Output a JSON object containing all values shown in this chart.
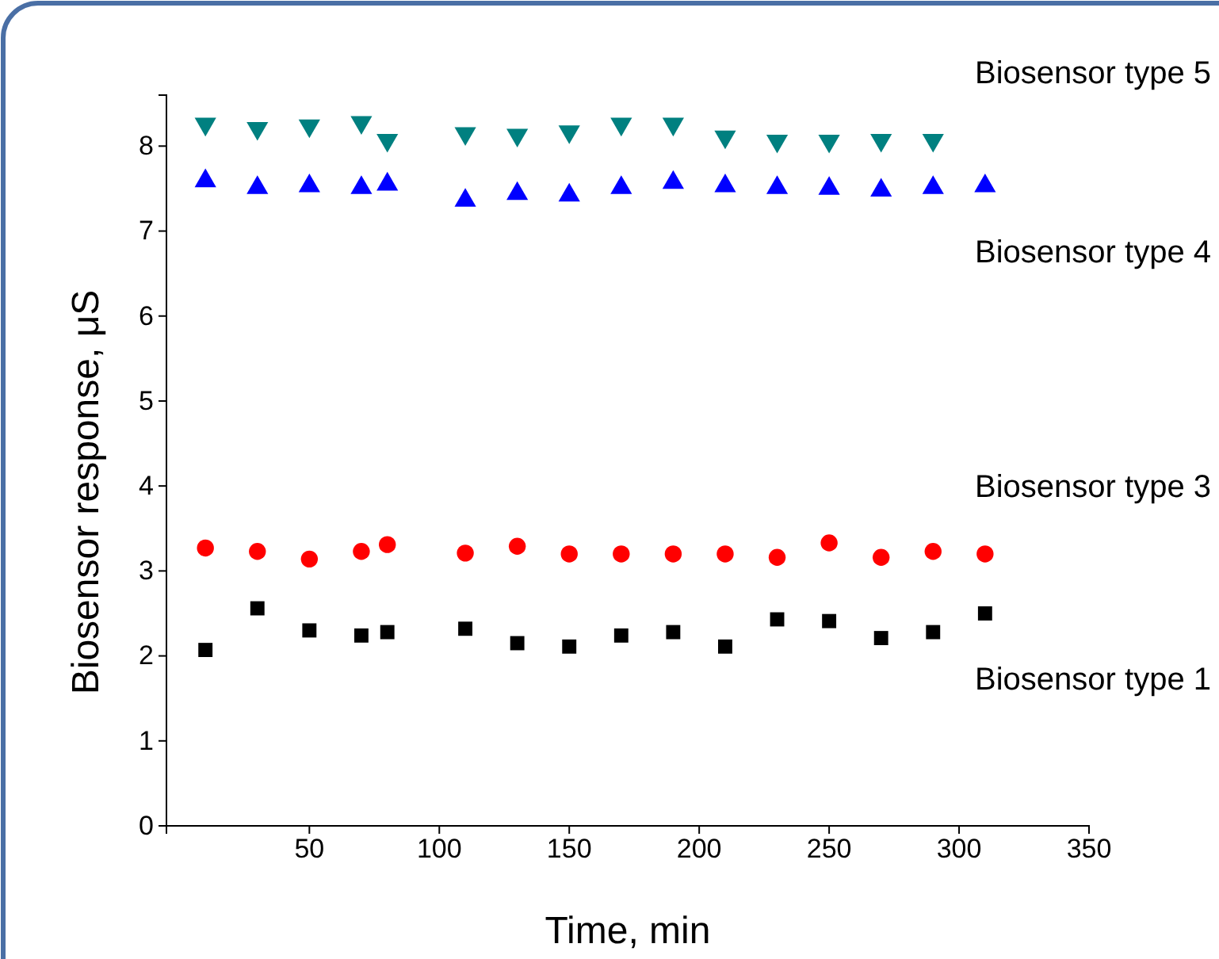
{
  "chart_data": {
    "type": "scatter",
    "xlabel": "Time, min",
    "ylabel": "Biosensor response, μS",
    "xlim": [
      -5,
      350
    ],
    "xticks": [
      50,
      100,
      150,
      200,
      250,
      300,
      350
    ],
    "ylim": [
      0,
      8.6
    ],
    "yticks": [
      0,
      1,
      2,
      3,
      4,
      5,
      6,
      7,
      8
    ],
    "x": [
      10,
      30,
      50,
      70,
      80,
      110,
      130,
      150,
      170,
      190,
      210,
      230,
      250,
      270,
      290,
      310
    ],
    "series": [
      {
        "name": "Biosensor type 1",
        "color": "#000000",
        "marker": "square",
        "values": [
          2.07,
          2.56,
          2.3,
          2.24,
          2.28,
          2.32,
          2.15,
          2.11,
          2.24,
          2.28,
          2.11,
          2.43,
          2.41,
          2.21,
          2.28,
          2.5
        ]
      },
      {
        "name": "Biosensor type 3",
        "color": "#ff0000",
        "marker": "circle",
        "values": [
          3.27,
          3.23,
          3.14,
          3.23,
          3.31,
          3.21,
          3.29,
          3.2,
          3.2,
          3.2,
          3.2,
          3.16,
          3.33,
          3.16,
          3.23,
          3.2
        ]
      },
      {
        "name": "Biosensor type 4",
        "color": "#0000ff",
        "marker": "triangle",
        "values": [
          7.59,
          7.51,
          7.53,
          7.51,
          7.55,
          7.36,
          7.44,
          7.42,
          7.51,
          7.57,
          7.53,
          7.51,
          7.5,
          7.48,
          7.51,
          7.53
        ]
      },
      {
        "name": "Biosensor type 5",
        "color": "#008080",
        "marker": "triangle-down",
        "x": [
          10,
          30,
          50,
          70,
          80,
          110,
          130,
          150,
          170,
          190,
          210,
          230,
          250,
          270,
          290
        ],
        "values": [
          8.26,
          8.21,
          8.24,
          8.28,
          8.07,
          8.15,
          8.13,
          8.17,
          8.26,
          8.26,
          8.11,
          8.06,
          8.06,
          8.07,
          8.07
        ]
      }
    ]
  }
}
